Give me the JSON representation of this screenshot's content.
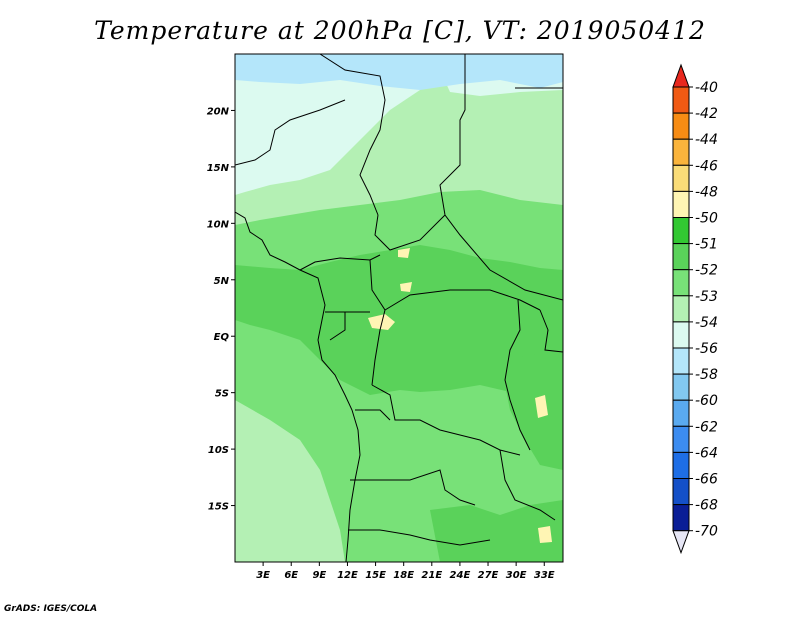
{
  "title": "Temperature at 200hPa [C], VT: 2019050412",
  "credit": "GrADS: IGES/COLA",
  "map": {
    "lon_range": [
      0,
      35
    ],
    "lat_range": [
      -20,
      25
    ],
    "lon_ticks": [
      "3E",
      "6E",
      "9E",
      "12E",
      "15E",
      "18E",
      "21E",
      "24E",
      "27E",
      "30E",
      "33E"
    ],
    "lon_tick_values": [
      3,
      6,
      9,
      12,
      15,
      18,
      21,
      24,
      27,
      30,
      33
    ],
    "lat_ticks": [
      "20N",
      "15N",
      "10N",
      "5N",
      "EQ",
      "5S",
      "10S",
      "15S"
    ],
    "lat_tick_values": [
      20,
      15,
      10,
      5,
      0,
      -5,
      -10,
      -15
    ]
  },
  "colorbar": {
    "labels": [
      "-40",
      "-42",
      "-44",
      "-46",
      "-48",
      "-50",
      "-51",
      "-52",
      "-53",
      "-54",
      "-56",
      "-58",
      "-60",
      "-62",
      "-64",
      "-66",
      "-68",
      "-70"
    ],
    "colors": [
      "#e8281e",
      "#f05a14",
      "#f78c14",
      "#fab43c",
      "#fadc78",
      "#fff5b4",
      "#32c832",
      "#5ad25a",
      "#78e178",
      "#b4f0b4",
      "#dcfaf0",
      "#b4e6fa",
      "#82c8f0",
      "#5aaaf0",
      "#3c8cf0",
      "#1e6ee6",
      "#1450c8",
      "#0a1e96",
      "#e6e6f5"
    ]
  },
  "field_colors": {
    "cold_top": "#b4e6fa",
    "pale": "#dcfaf0",
    "light_green": "#b4f0b4",
    "mid_green": "#78e178",
    "green": "#5ad25a",
    "dark_green": "#32c832",
    "yellow": "#fff5b4"
  }
}
